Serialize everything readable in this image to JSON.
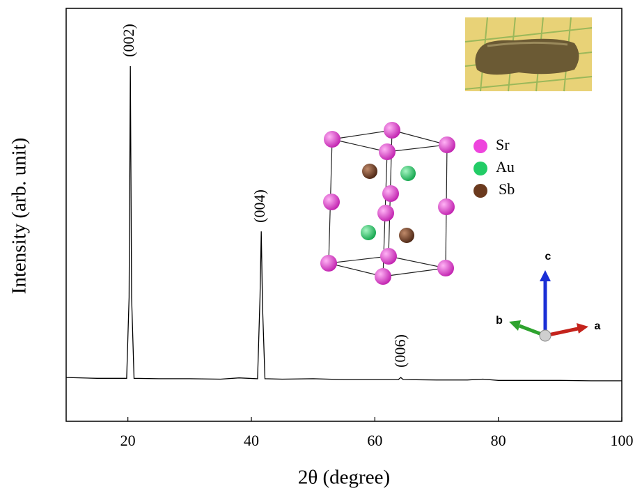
{
  "chart_data": {
    "type": "line",
    "x_label": "2θ (degree)",
    "y_label": "Intensity (arb. unit)",
    "xlim": [
      10,
      100
    ],
    "xticks": [
      20,
      40,
      60,
      80,
      100
    ],
    "ylim": [
      0,
      100
    ],
    "color": "#000000",
    "x": [
      10,
      15,
      19.8,
      20.2,
      20.4,
      20.6,
      21.0,
      25,
      30,
      35,
      38,
      41.0,
      41.4,
      41.6,
      41.8,
      42.2,
      45,
      50,
      55,
      60,
      63.8,
      64.2,
      64.6,
      70,
      75,
      77.5,
      80,
      85,
      90,
      95,
      100
    ],
    "values": [
      10.6,
      10.4,
      10.4,
      30,
      86,
      30,
      10.4,
      10.3,
      10.3,
      10.2,
      10.5,
      10.3,
      30,
      46,
      28,
      10.3,
      10.2,
      10.3,
      10.1,
      10.1,
      10.1,
      10.6,
      10.1,
      10.0,
      10.0,
      10.2,
      9.9,
      9.9,
      9.9,
      9.8,
      9.8
    ],
    "annotations": [
      "(002)",
      "(004)",
      "(006)"
    ],
    "inset_legend": [
      {
        "name": "Sr",
        "color": "#ee44dd"
      },
      {
        "name": "Au",
        "color": "#22cc66"
      },
      {
        "name": "Sb",
        "color": "#6b3a1e"
      }
    ],
    "inset_axes": [
      "a",
      "b",
      "c"
    ]
  }
}
